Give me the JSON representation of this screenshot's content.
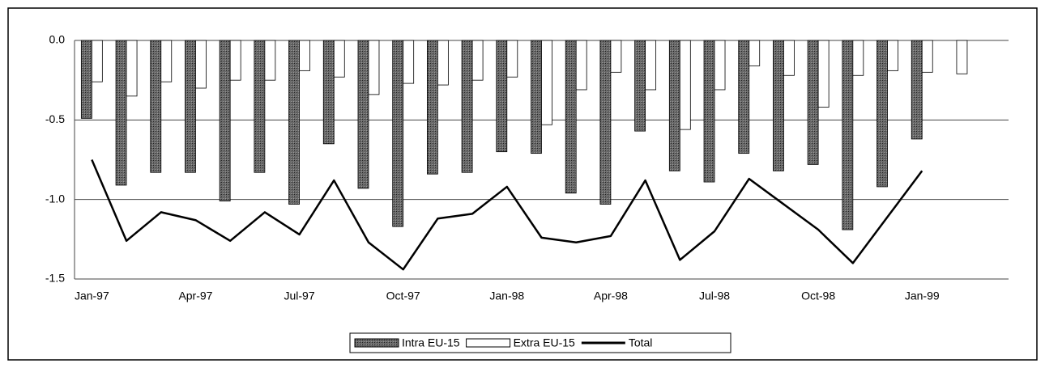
{
  "chart_data": {
    "type": "bar_line",
    "categories": [
      "Jan-97",
      null,
      null,
      "Apr-97",
      null,
      null,
      "Jul-97",
      null,
      null,
      "Oct-97",
      null,
      null,
      "Jan-98",
      null,
      null,
      "Apr-98",
      null,
      null,
      "Jul-98",
      null,
      null,
      "Oct-98",
      null,
      null,
      "Jan-99",
      null,
      null
    ],
    "series": [
      {
        "name": "Intra EU-15",
        "type": "bar",
        "color": "#5a5a5a",
        "values": [
          -0.49,
          -0.91,
          -0.83,
          -0.83,
          -1.01,
          -0.83,
          -1.03,
          -0.65,
          -0.93,
          -1.17,
          -0.84,
          -0.83,
          -0.7,
          -0.71,
          -0.96,
          -1.03,
          -0.57,
          -0.82,
          -0.89,
          -0.71,
          -0.82,
          -0.78,
          -1.19,
          -0.92,
          -0.62,
          null,
          null
        ]
      },
      {
        "name": "Extra EU-15",
        "type": "bar",
        "color": "#ffffff",
        "values": [
          -0.26,
          -0.35,
          -0.26,
          -0.3,
          -0.25,
          -0.25,
          -0.19,
          -0.23,
          -0.34,
          -0.27,
          -0.28,
          -0.25,
          -0.23,
          -0.53,
          -0.31,
          -0.2,
          -0.31,
          -0.56,
          -0.31,
          -0.16,
          -0.22,
          -0.42,
          -0.22,
          -0.19,
          -0.2,
          -0.21,
          null
        ]
      },
      {
        "name": "Total",
        "type": "line",
        "color": "#000000",
        "values": [
          -0.75,
          -1.26,
          -1.08,
          -1.13,
          -1.26,
          -1.08,
          -1.22,
          -0.88,
          -1.27,
          -1.44,
          -1.12,
          -1.09,
          -0.92,
          -1.24,
          -1.27,
          -1.23,
          -0.88,
          -1.38,
          -1.2,
          -0.87,
          -1.03,
          -1.19,
          -1.4,
          -1.11,
          -0.82,
          null,
          null
        ]
      }
    ],
    "ylim": [
      -1.5,
      0
    ],
    "yticks": [
      {
        "value": 0,
        "label": "0.0"
      },
      -0.5,
      {
        "value": -1,
        "label": "-1.0"
      },
      -1.5
    ],
    "grid": true,
    "legend": "bottom"
  }
}
